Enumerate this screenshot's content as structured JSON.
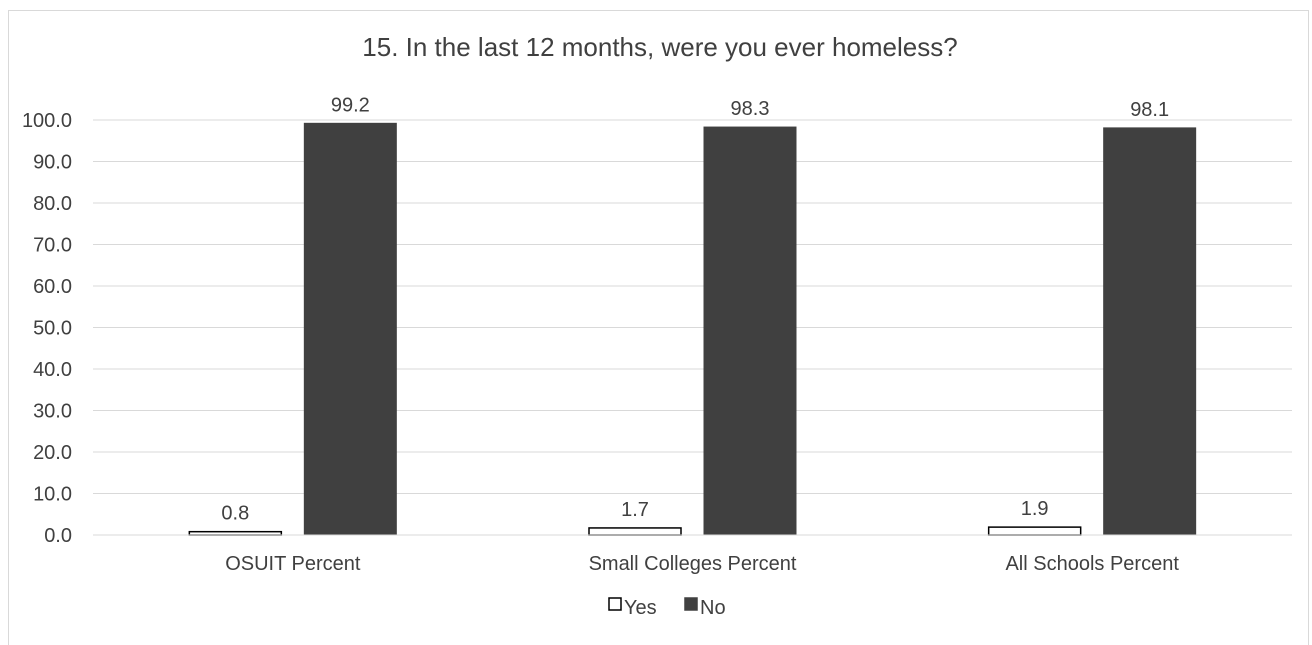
{
  "chart_data": {
    "type": "bar",
    "title": "15. In the last 12 months, were you ever homeless?",
    "xlabel": "",
    "ylabel": "",
    "categories": [
      "OSUIT Percent",
      "Small Colleges Percent",
      "All Schools Percent"
    ],
    "series": [
      {
        "name": "Yes",
        "values": [
          0.8,
          1.7,
          1.9
        ],
        "color": "#ffffff",
        "stroke": "#000000"
      },
      {
        "name": "No",
        "values": [
          99.2,
          98.3,
          98.1
        ],
        "color": "#404040",
        "stroke": "#404040"
      }
    ],
    "value_labels": [
      [
        "0.8",
        "1.7",
        "1.9"
      ],
      [
        "99.2",
        "98.3",
        "98.1"
      ]
    ],
    "ylim": [
      0,
      100
    ],
    "yticks": [
      0,
      10,
      20,
      30,
      40,
      50,
      60,
      70,
      80,
      90,
      100
    ],
    "ytick_labels": [
      "0.0",
      "10.0",
      "20.0",
      "30.0",
      "40.0",
      "50.0",
      "60.0",
      "70.0",
      "80.0",
      "90.0",
      "100.0"
    ],
    "grid": true,
    "legend": "bottom",
    "colors": {
      "gridline": "#d9d9d9",
      "text": "#404040",
      "border": "#d9d9d9"
    }
  }
}
